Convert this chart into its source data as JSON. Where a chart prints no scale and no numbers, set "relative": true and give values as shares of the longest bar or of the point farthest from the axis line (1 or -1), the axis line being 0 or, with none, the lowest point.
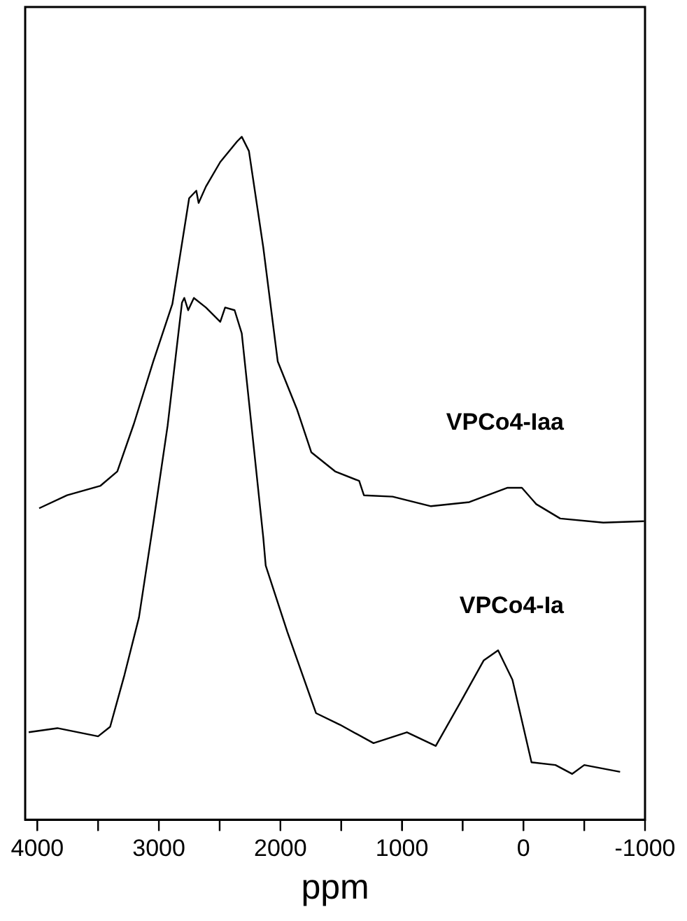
{
  "chart_data": {
    "type": "line",
    "relative": true,
    "xlabel": "ppm",
    "xlim": [
      4100,
      -1000
    ],
    "xticks": [
      4000,
      {
        "value": 3500,
        "label": null
      },
      3000,
      {
        "value": 2500,
        "label": null
      },
      2000,
      {
        "value": 1500,
        "label": null
      },
      1000,
      {
        "value": 500,
        "label": null
      },
      0,
      {
        "value": -500,
        "label": null
      },
      -1000
    ],
    "grid": false,
    "legend": false,
    "marker": "none",
    "line_style": "solid",
    "tick_labels": "x",
    "series": [
      {
        "name": "VPCo4-Iaa",
        "color": "#000000",
        "x": [
          3985,
          3755,
          3480,
          3342,
          3205,
          3046,
          2889,
          2751,
          2692,
          2673,
          2613,
          2495,
          2357,
          2318,
          2259,
          2141,
          2022,
          1864,
          1746,
          1550,
          1352,
          1313,
          1077,
          761,
          446,
          131,
          13,
          -105,
          -302,
          -657,
          -992
        ],
        "values": [
          0.456,
          0.475,
          0.489,
          0.51,
          0.58,
          0.671,
          0.755,
          0.91,
          0.921,
          0.903,
          0.927,
          0.963,
          0.993,
          1,
          0.979,
          0.838,
          0.671,
          0.601,
          0.538,
          0.51,
          0.496,
          0.475,
          0.473,
          0.459,
          0.465,
          0.486,
          0.486,
          0.462,
          0.441,
          0.435,
          0.437
        ]
      },
      {
        "name": "VPCo4-Ia",
        "color": "#000000",
        "x": [
          4071,
          3835,
          3500,
          3401,
          3283,
          3164,
          3046,
          2928,
          2810,
          2791,
          2759,
          2712,
          2613,
          2495,
          2455,
          2377,
          2318,
          2219,
          2141,
          2121,
          1943,
          1707,
          1510,
          1234,
          959,
          722,
          525,
          328,
          209,
          91,
          -66,
          -263,
          -401,
          -500,
          -795
        ],
        "values": [
          0.128,
          0.134,
          0.122,
          0.136,
          0.212,
          0.296,
          0.434,
          0.577,
          0.757,
          0.764,
          0.746,
          0.764,
          0.75,
          0.729,
          0.75,
          0.746,
          0.712,
          0.545,
          0.413,
          0.372,
          0.275,
          0.156,
          0.139,
          0.112,
          0.128,
          0.108,
          0.17,
          0.233,
          0.248,
          0.205,
          0.084,
          0.08,
          0.067,
          0.08,
          0.07
        ]
      }
    ]
  }
}
